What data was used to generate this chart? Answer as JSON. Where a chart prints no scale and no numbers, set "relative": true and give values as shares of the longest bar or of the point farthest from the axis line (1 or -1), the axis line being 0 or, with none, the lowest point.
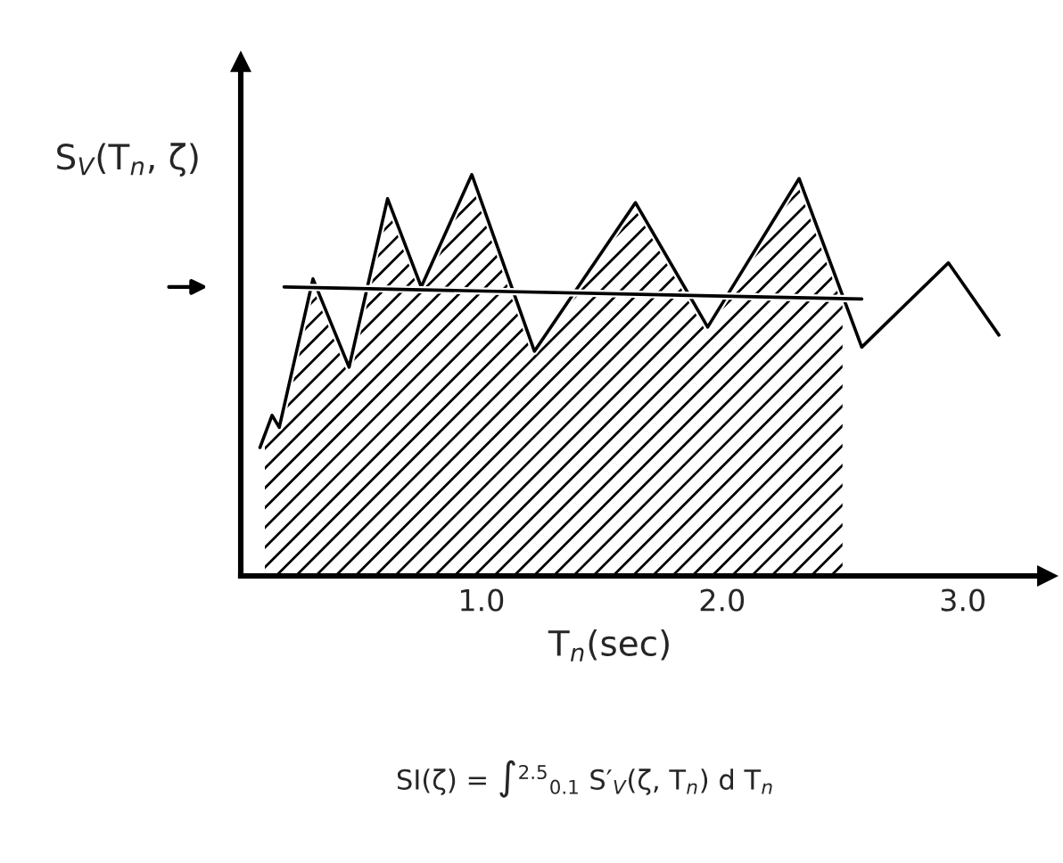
{
  "chart_data": {
    "type": "line",
    "relative": true,
    "xlabel": "T$_{n}$(sec)",
    "ylabel": "S$_{V}$(T$_{n}$, ζ)",
    "xlim": [
      0,
      3.35
    ],
    "xticks": [
      {
        "value": 1,
        "label": "1.0"
      },
      {
        "value": 2,
        "label": "2.0"
      },
      {
        "value": 3,
        "label": "3.0"
      }
    ],
    "series": [
      {
        "type": "area",
        "color": "#000000",
        "x": [
          0.1,
          0.13,
          0.16,
          0.3,
          0.45,
          0.61,
          0.75,
          0.96,
          1.22,
          1.64,
          1.94,
          2.32,
          2.5
        ],
        "values": [
          0.35,
          0.4,
          0.37,
          0.74,
          0.52,
          0.94,
          0.72,
          1.0,
          0.56,
          0.93,
          0.62,
          0.99,
          0.7
        ]
      },
      {
        "type": "line",
        "color": "#000000",
        "x": [
          0.08,
          0.13,
          0.16,
          0.3,
          0.45,
          0.61,
          0.75,
          0.96,
          1.22,
          1.64,
          1.94,
          2.32,
          2.58,
          2.94,
          3.15
        ],
        "values": [
          0.32,
          0.4,
          0.37,
          0.74,
          0.52,
          0.94,
          0.72,
          1.0,
          0.56,
          0.93,
          0.62,
          0.99,
          0.57,
          0.78,
          0.6
        ]
      },
      {
        "color": "#000000",
        "x": [
          0.18,
          2.58
        ],
        "values": [
          0.72,
          0.69
        ]
      }
    ],
    "annotations": [
      "SI(ζ) = ∫$^{2.5}$$_{0.1}$ S′$_{V}$(ζ, T$_{n}$) d T$_{n}$"
    ]
  }
}
